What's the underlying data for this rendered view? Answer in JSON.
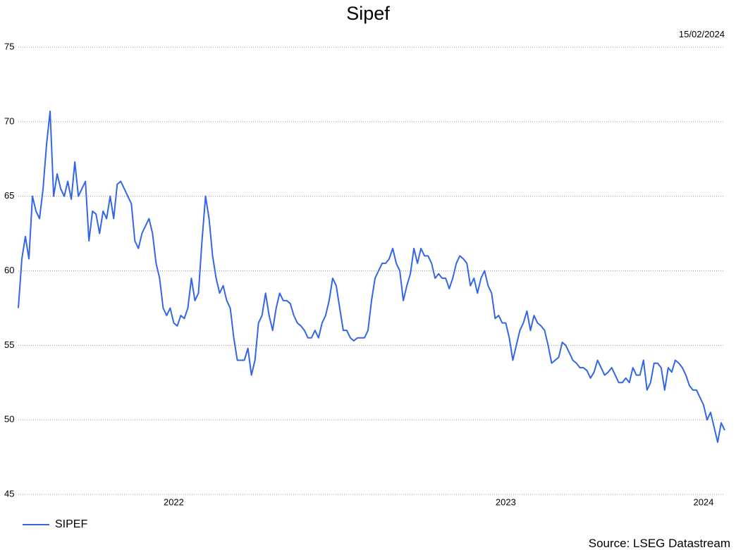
{
  "chart_data": {
    "type": "line",
    "title": "Sipef",
    "date": "15/02/2024",
    "source": "Source: LSEG Datastream",
    "categories": [
      null,
      null,
      null,
      null,
      null,
      null,
      null,
      null,
      null,
      null,
      null,
      null,
      null,
      null,
      null,
      null,
      null,
      null,
      null,
      null,
      null,
      null,
      null,
      null,
      null,
      null,
      null,
      null,
      null,
      null,
      null,
      null,
      null,
      null,
      null,
      null,
      null,
      null,
      null,
      null,
      null,
      null,
      null,
      null,
      "2022",
      null,
      null,
      null,
      null,
      null,
      null,
      null,
      null,
      null,
      null,
      null,
      null,
      null,
      null,
      null,
      null,
      null,
      null,
      null,
      null,
      null,
      null,
      null,
      null,
      null,
      null,
      null,
      null,
      null,
      null,
      null,
      null,
      null,
      null,
      null,
      null,
      null,
      null,
      null,
      null,
      null,
      null,
      null,
      null,
      null,
      null,
      null,
      null,
      null,
      null,
      null,
      null,
      null,
      null,
      null,
      null,
      null,
      null,
      null,
      null,
      null,
      null,
      null,
      null,
      null,
      null,
      null,
      null,
      null,
      null,
      null,
      null,
      null,
      null,
      null,
      null,
      null,
      null,
      null,
      null,
      null,
      null,
      null,
      null,
      null,
      null,
      null,
      null,
      null,
      null,
      null,
      null,
      null,
      "2023",
      null,
      null,
      null,
      null,
      null,
      null,
      null,
      null,
      null,
      null,
      null,
      null,
      null,
      null,
      null,
      null,
      null,
      null,
      null,
      null,
      null,
      null,
      null,
      null,
      null,
      null,
      null,
      null,
      null,
      null,
      null,
      null,
      null,
      null,
      null,
      null,
      null,
      null,
      null,
      null,
      null,
      null,
      null,
      null,
      null,
      null,
      null,
      null,
      null,
      null,
      null,
      null,
      null,
      null,
      null,
      "2024",
      null,
      null,
      null,
      null,
      null,
      null
    ],
    "series": [
      {
        "name": "SIPEF",
        "color": "#3366e6",
        "values": [
          57.5,
          60.8,
          62.3,
          60.8,
          65.0,
          64.0,
          63.5,
          65.5,
          68.5,
          70.7,
          65.0,
          66.5,
          65.5,
          65.0,
          66.0,
          64.8,
          67.3,
          65.0,
          65.5,
          66.0,
          62.0,
          64.0,
          63.8,
          62.5,
          64.0,
          63.5,
          65.0,
          63.5,
          65.8,
          66.0,
          65.5,
          65.0,
          64.5,
          62.0,
          61.5,
          62.5,
          63.0,
          63.5,
          62.5,
          60.5,
          59.5,
          57.5,
          57.0,
          57.5,
          56.5,
          56.3,
          57.0,
          56.8,
          57.5,
          59.5,
          58.0,
          58.5,
          62.0,
          65.0,
          63.5,
          61.0,
          59.5,
          58.5,
          59.0,
          58.0,
          57.5,
          55.5,
          54.0,
          54.0,
          54.0,
          54.8,
          53.0,
          54.0,
          56.5,
          57.0,
          58.5,
          57.0,
          56.0,
          57.5,
          58.5,
          58.0,
          58.0,
          57.8,
          57.0,
          56.5,
          56.3,
          56.0,
          55.5,
          55.5,
          56.0,
          55.5,
          56.5,
          57.0,
          58.0,
          59.5,
          59.0,
          57.5,
          56.0,
          56.0,
          55.5,
          55.3,
          55.5,
          55.5,
          55.5,
          56.0,
          58.0,
          59.5,
          60.0,
          60.5,
          60.5,
          60.8,
          61.5,
          60.5,
          60.0,
          58.0,
          59.0,
          59.8,
          61.5,
          60.5,
          61.5,
          61.0,
          61.0,
          60.5,
          59.5,
          59.8,
          59.5,
          59.5,
          58.8,
          59.5,
          60.5,
          61.0,
          60.8,
          60.5,
          59.0,
          59.5,
          58.5,
          59.5,
          60.0,
          59.0,
          58.5,
          56.8,
          57.0,
          56.5,
          56.5,
          55.5,
          54.0,
          55.0,
          56.0,
          56.5,
          57.3,
          56.0,
          57.0,
          56.5,
          56.3,
          56.0,
          55.0,
          53.8,
          54.0,
          54.2,
          55.2,
          55.0,
          54.5,
          54.0,
          53.8,
          53.5,
          53.5,
          53.3,
          52.8,
          53.2,
          54.0,
          53.5,
          53.0,
          53.2,
          53.5,
          53.0,
          52.5,
          52.5,
          52.8,
          52.5,
          53.5,
          53.0,
          53.0,
          54.0,
          52.0,
          52.5,
          53.8,
          53.8,
          53.5,
          52.0,
          53.5,
          53.2,
          54.0,
          53.8,
          53.5,
          53.0,
          52.3,
          52.0,
          52.0,
          51.5,
          51.0,
          50.0,
          50.5,
          49.5,
          48.5,
          49.8,
          49.3
        ]
      }
    ],
    "ylim": [
      45,
      75
    ],
    "yticks": [
      45,
      50,
      55,
      60,
      65,
      70,
      75
    ],
    "grid": true,
    "legend": "bottom-left"
  }
}
